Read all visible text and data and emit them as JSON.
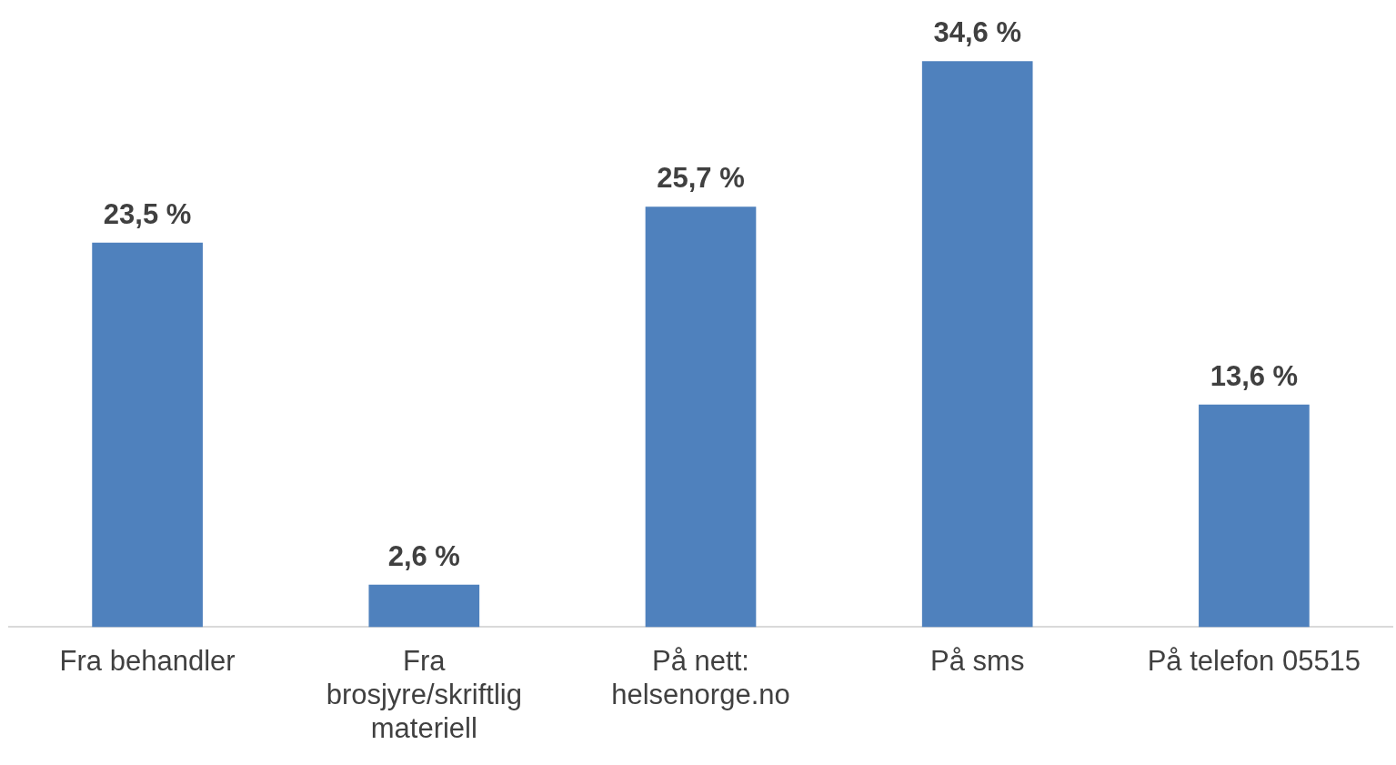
{
  "chart_data": {
    "type": "bar",
    "categories": [
      "Fra behandler",
      "Fra brosjyre/skriftlig materiell",
      "På nett: helsenorge.no",
      "På sms",
      "På telefon 05515"
    ],
    "values": [
      23.5,
      2.6,
      25.7,
      34.6,
      13.6
    ],
    "value_labels": [
      "23,5 %",
      "2,6 %",
      "25,7 %",
      "34,6 %",
      "13,6 %"
    ],
    "color": "#4f81bd",
    "legend": false
  }
}
